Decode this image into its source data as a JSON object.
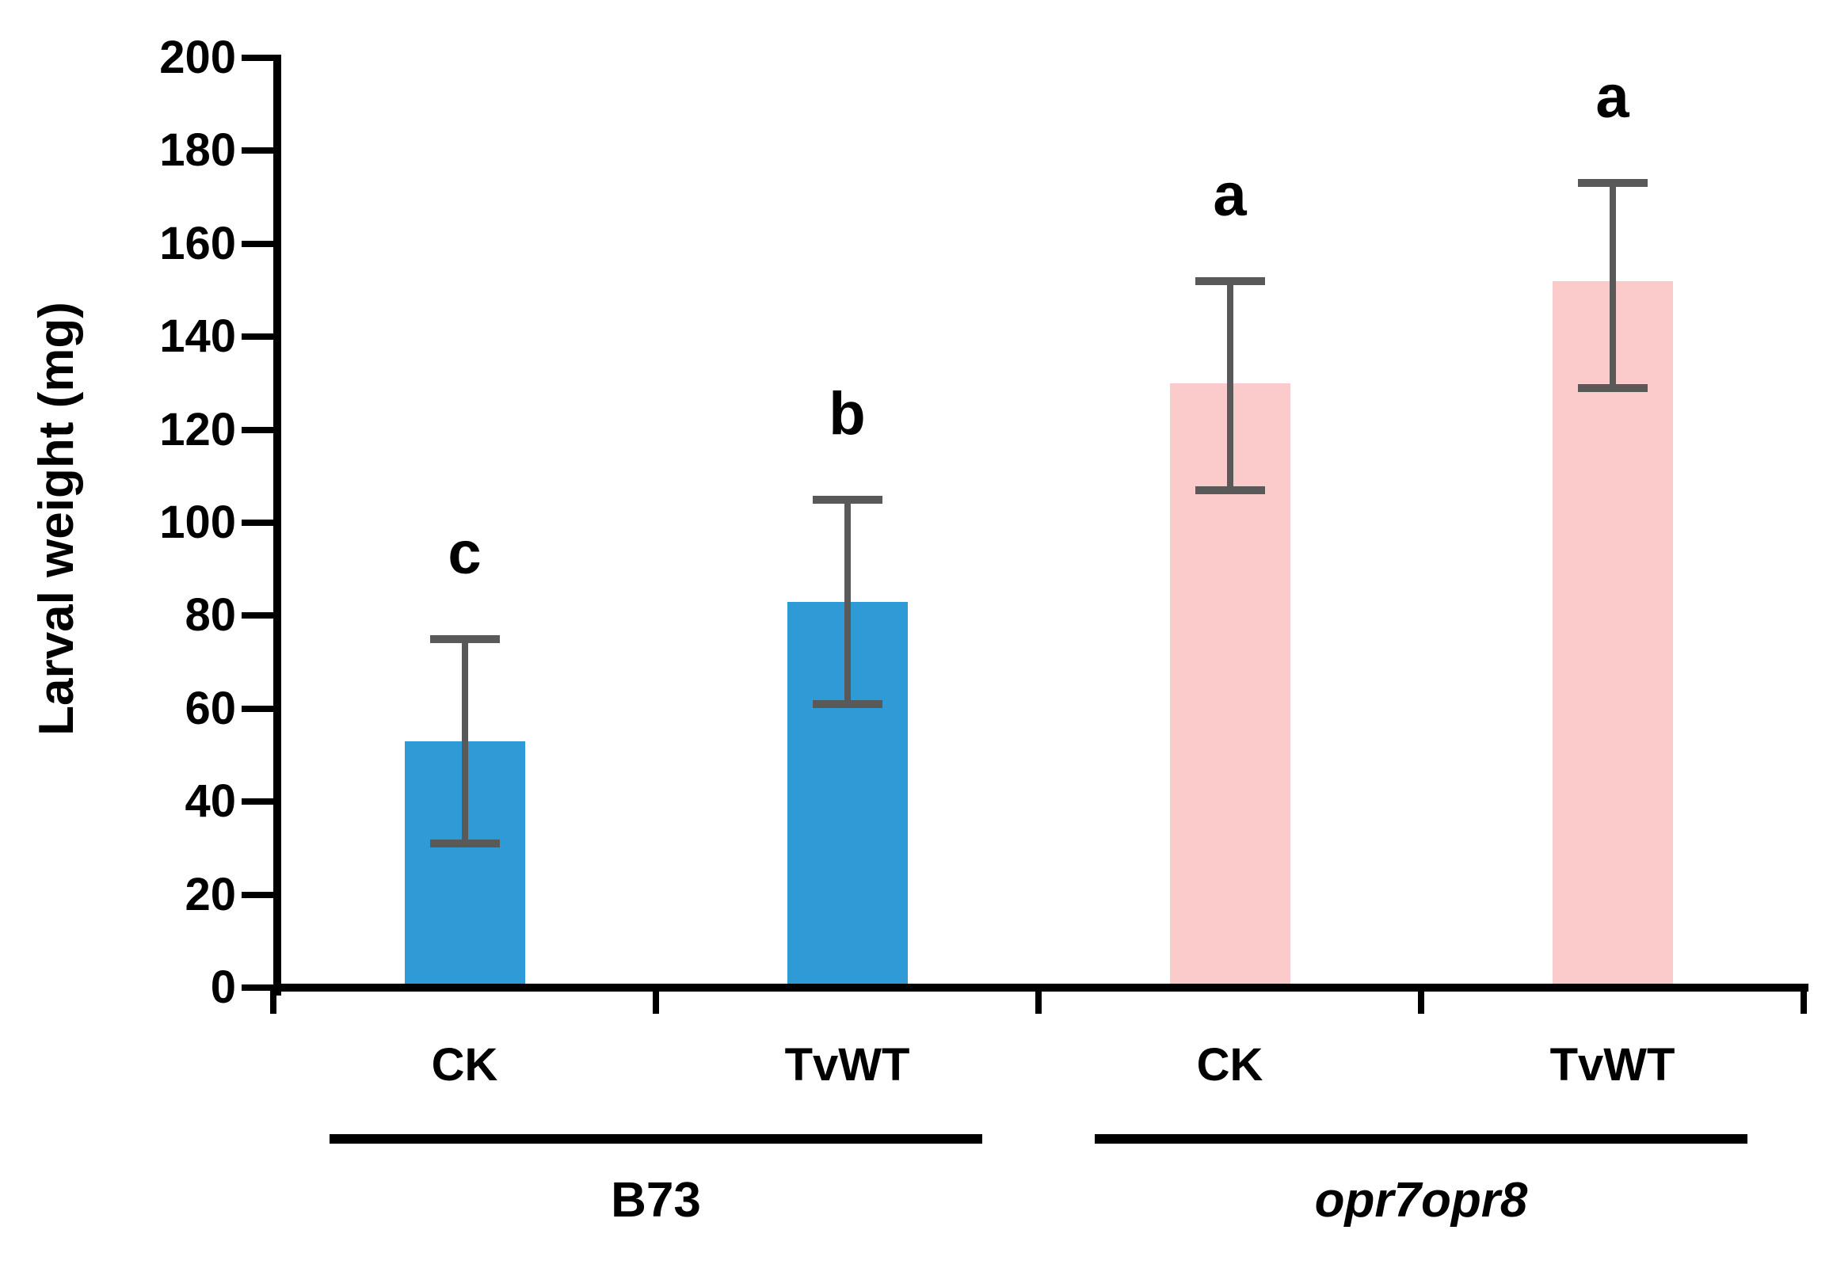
{
  "chart_data": {
    "type": "bar",
    "title": "",
    "ylabel": "Larval weight (mg)",
    "xlabel": "",
    "ylim": [
      0,
      200
    ],
    "ytick_step": 20,
    "yticks": [
      0,
      20,
      40,
      60,
      80,
      100,
      120,
      140,
      160,
      180,
      200
    ],
    "grid": false,
    "legend": "none",
    "categories": [
      "CK",
      "TvWT",
      "CK",
      "TvWT"
    ],
    "groups": [
      {
        "label": "B73",
        "italic": false,
        "bars": [
          {
            "category": "CK",
            "value": 53,
            "error_low": 31,
            "error_high": 75,
            "sig_letter": "c",
            "color": "#2E9BD6"
          },
          {
            "category": "TvWT",
            "value": 83,
            "error_low": 61,
            "error_high": 105,
            "sig_letter": "b",
            "color": "#2E9BD6"
          }
        ]
      },
      {
        "label": "opr7opr8",
        "italic": true,
        "bars": [
          {
            "category": "CK",
            "value": 130,
            "error_low": 107,
            "error_high": 152,
            "sig_letter": "a",
            "color": "#FBCBCB"
          },
          {
            "category": "TvWT",
            "value": 152,
            "error_low": 129,
            "error_high": 173,
            "sig_letter": "a",
            "color": "#FBCBCB"
          }
        ]
      }
    ],
    "colors": {
      "bar_b73": "#2E9BD6",
      "bar_opr7opr8": "#FBCBCB",
      "error_bar": "#595959",
      "axis": "#000000",
      "text": "#000000"
    }
  }
}
